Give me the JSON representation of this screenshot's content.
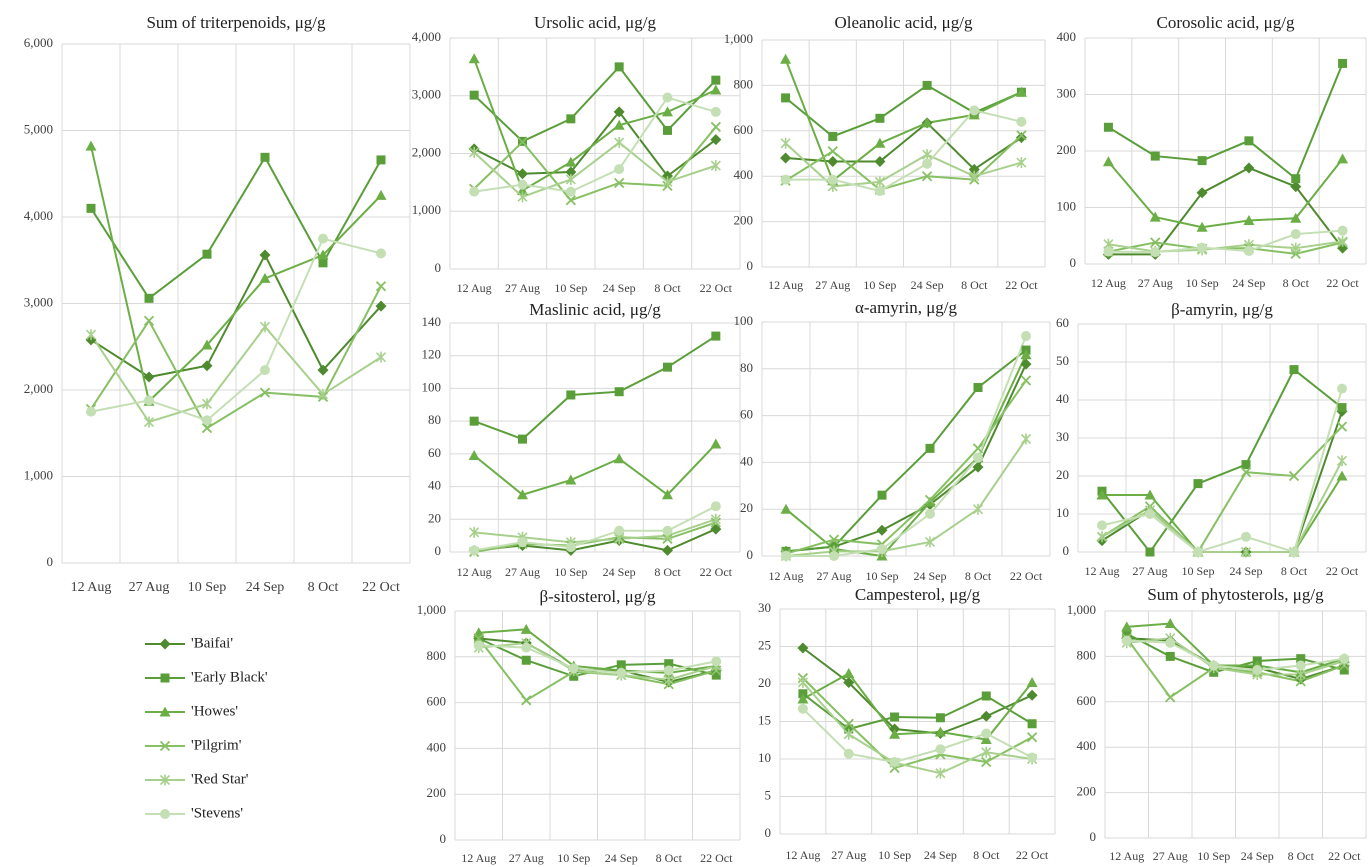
{
  "legend": {
    "series": [
      {
        "name": "'Baifai'",
        "color": "#4e8a2e",
        "marker": "diamond"
      },
      {
        "name": "'Early Black'",
        "color": "#5a9e3a",
        "marker": "square"
      },
      {
        "name": "'Howes'",
        "color": "#6aae45",
        "marker": "triangle"
      },
      {
        "name": "'Pilgrim'",
        "color": "#86c062",
        "marker": "x"
      },
      {
        "name": "'Red Star'",
        "color": "#a8d08d",
        "marker": "star"
      },
      {
        "name": "'Stevens'",
        "color": "#c5dfb5",
        "marker": "circle"
      }
    ]
  },
  "chart_data": [
    {
      "type": "line",
      "title": "Sum of triterpenoids, μg/g",
      "categories": [
        "12 Aug",
        "27 Aug",
        "10 Sep",
        "24 Sep",
        "8 Oct",
        "22 Oct"
      ],
      "ylim": [
        0,
        6000
      ],
      "yticks": [
        0,
        {
          "value": 1000,
          "label": "1,000"
        },
        {
          "value": 2000,
          "label": "2,000"
        },
        {
          "value": 3000,
          "label": "3,000"
        },
        {
          "value": 4000,
          "label": "4,000"
        },
        {
          "value": 5000,
          "label": "5,000"
        },
        {
          "value": 6000,
          "label": "6,000"
        }
      ],
      "grid": true,
      "series": [
        {
          "values": [
            2580,
            2150,
            2280,
            3560,
            2230,
            2970
          ]
        },
        {
          "values": [
            4100,
            3060,
            3570,
            4690,
            3470,
            4660
          ]
        },
        {
          "values": [
            4820,
            1870,
            2520,
            3290,
            3560,
            4250
          ]
        },
        {
          "values": [
            1780,
            2800,
            1560,
            1970,
            1920,
            3200
          ]
        },
        {
          "values": [
            2640,
            1630,
            1840,
            2730,
            1950,
            2380
          ]
        },
        {
          "values": [
            1750,
            1880,
            1650,
            2230,
            3750,
            3580
          ]
        }
      ]
    },
    {
      "type": "line",
      "title": "Ursolic acid, μg/g",
      "categories": [
        "12 Aug",
        "27 Aug",
        "10 Sep",
        "24 Sep",
        "8 Oct",
        "22 Oct"
      ],
      "ylim": [
        0,
        4000
      ],
      "yticks": [
        0,
        {
          "value": 1000,
          "label": "1,000"
        },
        {
          "value": 2000,
          "label": "2,000"
        },
        {
          "value": 3000,
          "label": "3,000"
        },
        {
          "value": 4000,
          "label": "4,000"
        }
      ],
      "grid": true,
      "series": [
        {
          "values": [
            2080,
            1650,
            1680,
            2720,
            1610,
            2240
          ]
        },
        {
          "values": [
            3010,
            2210,
            2600,
            3500,
            2400,
            3270
          ]
        },
        {
          "values": [
            3640,
            1360,
            1850,
            2490,
            2720,
            3100
          ]
        },
        {
          "values": [
            1390,
            2200,
            1190,
            1490,
            1440,
            2460
          ]
        },
        {
          "values": [
            2020,
            1250,
            1550,
            2190,
            1510,
            1790
          ]
        },
        {
          "values": [
            1340,
            1460,
            1340,
            1730,
            2970,
            2720
          ]
        }
      ]
    },
    {
      "type": "line",
      "title": "Oleanolic acid, μg/g",
      "categories": [
        "12 Aug",
        "27 Aug",
        "10 Sep",
        "24 Sep",
        "8 Oct",
        "22 Oct"
      ],
      "ylim": [
        0,
        1000
      ],
      "yticks": [
        0,
        200,
        400,
        600,
        800,
        {
          "value": 1000,
          "label": "1,000"
        }
      ],
      "grid": true,
      "series": [
        {
          "values": [
            480,
            465,
            465,
            635,
            430,
            570
          ]
        },
        {
          "values": [
            745,
            575,
            655,
            800,
            680,
            770
          ]
        },
        {
          "values": [
            915,
            380,
            545,
            635,
            670,
            770
          ]
        },
        {
          "values": [
            380,
            510,
            340,
            400,
            385,
            580
          ]
        },
        {
          "values": [
            545,
            355,
            375,
            495,
            400,
            460
          ]
        },
        {
          "values": [
            385,
            385,
            335,
            455,
            690,
            640
          ]
        }
      ]
    },
    {
      "type": "line",
      "title": "Corosolic acid, μg/g",
      "categories": [
        "12 Aug",
        "27 Aug",
        "10 Sep",
        "24 Sep",
        "8 Oct",
        "22 Oct"
      ],
      "ylim": [
        0,
        400
      ],
      "yticks": [
        0,
        100,
        200,
        300,
        400
      ],
      "grid": true,
      "series": [
        {
          "values": [
            17,
            17,
            126,
            170,
            137,
            28
          ]
        },
        {
          "values": [
            242,
            191,
            183,
            218,
            151,
            355
          ]
        },
        {
          "values": [
            181,
            83,
            65,
            77,
            81,
            186
          ]
        },
        {
          "values": [
            22,
            38,
            27,
            28,
            18,
            38
          ]
        },
        {
          "values": [
            35,
            22,
            25,
            34,
            28,
            40
          ]
        },
        {
          "values": [
            22,
            21,
            29,
            23,
            53,
            59
          ]
        }
      ]
    },
    {
      "type": "line",
      "title": "Maslinic acid, μg/g",
      "categories": [
        "12 Aug",
        "27 Aug",
        "10 Sep",
        "24 Sep",
        "8 Oct",
        "22 Oct"
      ],
      "ylim": [
        0,
        140
      ],
      "yticks": [
        0,
        20,
        40,
        60,
        80,
        100,
        120,
        140
      ],
      "grid": true,
      "series": [
        {
          "values": [
            1,
            4,
            1,
            7,
            1,
            14
          ]
        },
        {
          "values": [
            80,
            69,
            96,
            98,
            113,
            132
          ]
        },
        {
          "values": [
            59,
            35,
            44,
            57,
            35,
            66
          ]
        },
        {
          "values": [
            0,
            5,
            4,
            9,
            8,
            18
          ]
        },
        {
          "values": [
            12,
            9,
            6,
            8,
            10,
            20
          ]
        },
        {
          "values": [
            1,
            6,
            3,
            13,
            13,
            28
          ]
        }
      ]
    },
    {
      "type": "line",
      "title": "α-amyrin, μg/g",
      "categories": [
        "12 Aug",
        "27 Aug",
        "10 Sep",
        "24 Sep",
        "8 Oct",
        "22 Oct"
      ],
      "ylim": [
        0,
        100
      ],
      "yticks": [
        0,
        20,
        40,
        60,
        80,
        100
      ],
      "grid": true,
      "series": [
        {
          "values": [
            2,
            4,
            11,
            22,
            38,
            82
          ]
        },
        {
          "values": [
            2,
            4,
            26,
            46,
            72,
            88
          ]
        },
        {
          "values": [
            20,
            3,
            0,
            23,
            42,
            86
          ]
        },
        {
          "values": [
            1,
            7,
            5,
            24,
            46,
            75
          ]
        },
        {
          "values": [
            0,
            2,
            2,
            6,
            20,
            50
          ]
        },
        {
          "values": [
            0,
            0,
            3,
            18,
            42,
            94
          ]
        }
      ]
    },
    {
      "type": "line",
      "title": "β-amyrin, μg/g",
      "categories": [
        "12 Aug",
        "27 Aug",
        "10 Sep",
        "24 Sep",
        "8 Oct",
        "22 Oct"
      ],
      "ylim": [
        0,
        60
      ],
      "yticks": [
        0,
        10,
        20,
        30,
        40,
        50,
        60
      ],
      "grid": true,
      "series": [
        {
          "values": [
            3,
            11,
            0,
            0,
            0,
            37
          ]
        },
        {
          "values": [
            16,
            0,
            18,
            23,
            48,
            38
          ]
        },
        {
          "values": [
            15,
            15,
            0,
            0,
            0,
            20
          ]
        },
        {
          "values": [
            4,
            12,
            0,
            21,
            20,
            33
          ]
        },
        {
          "values": [
            4,
            11,
            0,
            0,
            0,
            24
          ]
        },
        {
          "values": [
            7,
            10,
            0,
            4,
            0,
            43
          ]
        }
      ]
    },
    {
      "type": "line",
      "title": "β-sitosterol, μg/g",
      "categories": [
        "12 Aug",
        "27 Aug",
        "10 Sep",
        "24 Sep",
        "8 Oct",
        "22 Oct"
      ],
      "ylim": [
        0,
        1000
      ],
      "yticks": [
        0,
        200,
        400,
        600,
        800,
        {
          "value": 1000,
          "label": "1,000"
        }
      ],
      "grid": true,
      "series": [
        {
          "values": [
            880,
            860,
            745,
            740,
            690,
            740
          ]
        },
        {
          "values": [
            880,
            785,
            715,
            765,
            770,
            720
          ]
        },
        {
          "values": [
            905,
            920,
            760,
            740,
            730,
            760
          ]
        },
        {
          "values": [
            880,
            610,
            735,
            720,
            680,
            740
          ]
        },
        {
          "values": [
            840,
            860,
            740,
            720,
            700,
            760
          ]
        },
        {
          "values": [
            850,
            840,
            750,
            730,
            740,
            780
          ]
        }
      ]
    },
    {
      "type": "line",
      "title": "Campesterol, μg/g",
      "categories": [
        "12 Aug",
        "27 Aug",
        "10 Sep",
        "24 Sep",
        "8 Oct",
        "22 Oct"
      ],
      "ylim": [
        0,
        30
      ],
      "yticks": [
        0,
        5,
        10,
        15,
        20,
        25,
        30
      ],
      "grid": true,
      "series": [
        {
          "values": [
            24.8,
            20.2,
            14,
            13.4,
            15.7,
            18.5
          ]
        },
        {
          "values": [
            18.7,
            14,
            15.6,
            15.5,
            18.4,
            14.7
          ]
        },
        {
          "values": [
            18,
            21.4,
            13.3,
            13.6,
            12.6,
            20.2
          ]
        },
        {
          "values": [
            20.8,
            14.7,
            8.8,
            10.6,
            9.6,
            12.9
          ]
        },
        {
          "values": [
            20.2,
            13.3,
            9.5,
            8.1,
            10.9,
            10
          ]
        },
        {
          "values": [
            16.7,
            10.7,
            9.6,
            11.3,
            13.4,
            10.2
          ]
        }
      ]
    },
    {
      "type": "line",
      "title": "Sum of phytosterols, μg/g",
      "categories": [
        "12 Aug",
        "27 Aug",
        "10 Sep",
        "24 Sep",
        "8 Oct",
        "22 Oct"
      ],
      "ylim": [
        0,
        1000
      ],
      "yticks": [
        0,
        200,
        400,
        600,
        800,
        {
          "value": 1000,
          "label": "1,000"
        }
      ],
      "grid": true,
      "series": [
        {
          "values": [
            880,
            870,
            760,
            750,
            700,
            760
          ]
        },
        {
          "values": [
            900,
            800,
            730,
            780,
            790,
            740
          ]
        },
        {
          "values": [
            930,
            945,
            760,
            760,
            730,
            790
          ]
        },
        {
          "values": [
            880,
            620,
            750,
            730,
            690,
            760
          ]
        },
        {
          "values": [
            860,
            880,
            750,
            720,
            720,
            780
          ]
        },
        {
          "values": [
            870,
            860,
            760,
            740,
            760,
            790
          ]
        }
      ]
    }
  ]
}
